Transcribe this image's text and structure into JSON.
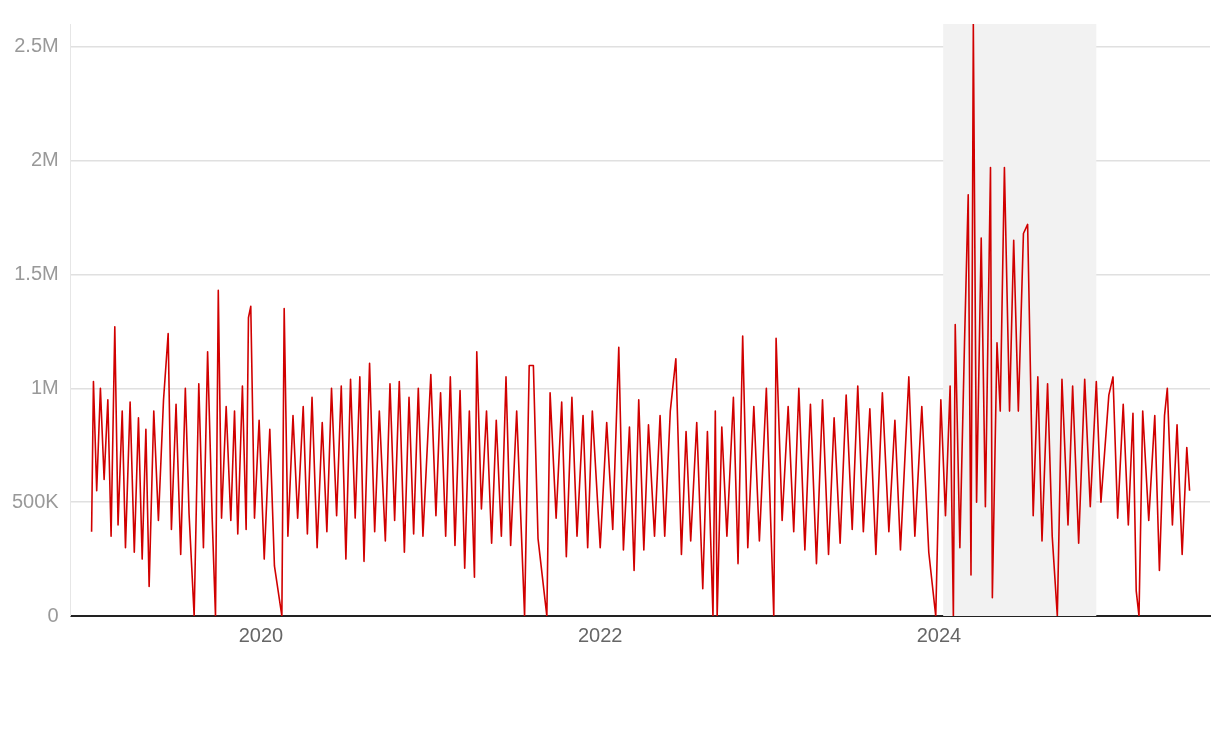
{
  "chart_data": {
    "type": "line",
    "x": [
      "2019-01-01",
      "2019-01-05",
      "2019-01-12",
      "2019-01-20",
      "2019-01-28",
      "2019-02-05",
      "2019-02-12",
      "2019-02-20",
      "2019-02-27",
      "2019-03-08",
      "2019-03-15",
      "2019-03-25",
      "2019-04-03",
      "2019-04-12",
      "2019-04-20",
      "2019-04-28",
      "2019-05-05",
      "2019-05-15",
      "2019-05-25",
      "2019-06-05",
      "2019-06-15",
      "2019-06-22",
      "2019-07-02",
      "2019-07-12",
      "2019-07-22",
      "2019-07-30",
      "2019-08-10",
      "2019-08-20",
      "2019-08-30",
      "2019-09-08",
      "2019-09-18",
      "2019-09-25",
      "2019-10-01",
      "2019-10-08",
      "2019-10-18",
      "2019-10-28",
      "2019-11-05",
      "2019-11-12",
      "2019-11-22",
      "2019-11-30",
      "2019-12-05",
      "2019-12-10",
      "2019-12-18",
      "2019-12-28",
      "2020-01-08",
      "2020-01-20",
      "2020-01-30",
      "2020-02-15",
      "2020-02-20",
      "2020-02-28",
      "2020-03-10",
      "2020-03-20",
      "2020-04-01",
      "2020-04-10",
      "2020-04-20",
      "2020-05-01",
      "2020-05-12",
      "2020-05-22",
      "2020-06-01",
      "2020-06-12",
      "2020-06-22",
      "2020-07-02",
      "2020-07-12",
      "2020-07-22",
      "2020-08-01",
      "2020-08-10",
      "2020-08-22",
      "2020-09-02",
      "2020-09-12",
      "2020-09-25",
      "2020-10-05",
      "2020-10-15",
      "2020-10-25",
      "2020-11-05",
      "2020-11-15",
      "2020-11-25",
      "2020-12-05",
      "2020-12-15",
      "2021-01-01",
      "2021-01-12",
      "2021-01-22",
      "2021-02-02",
      "2021-02-12",
      "2021-02-22",
      "2021-03-05",
      "2021-03-15",
      "2021-03-25",
      "2021-04-05",
      "2021-04-10",
      "2021-04-20",
      "2021-05-01",
      "2021-05-12",
      "2021-05-22",
      "2021-06-02",
      "2021-06-12",
      "2021-06-22",
      "2021-07-05",
      "2021-07-22",
      "2021-08-01",
      "2021-08-10",
      "2021-08-20",
      "2021-09-08",
      "2021-09-15",
      "2021-09-28",
      "2021-10-10",
      "2021-10-20",
      "2021-11-01",
      "2021-11-12",
      "2021-11-25",
      "2021-12-05",
      "2021-12-15",
      "2022-01-01",
      "2022-01-15",
      "2022-01-28",
      "2022-02-10",
      "2022-02-20",
      "2022-03-05",
      "2022-03-15",
      "2022-03-25",
      "2022-04-05",
      "2022-04-15",
      "2022-04-28",
      "2022-05-10",
      "2022-05-20",
      "2022-06-01",
      "2022-06-13",
      "2022-06-25",
      "2022-07-05",
      "2022-07-15",
      "2022-07-28",
      "2022-08-10",
      "2022-08-20",
      "2022-09-01",
      "2022-09-06",
      "2022-09-10",
      "2022-09-20",
      "2022-10-01",
      "2022-10-15",
      "2022-10-25",
      "2022-11-04",
      "2022-11-15",
      "2022-11-28",
      "2022-12-10",
      "2022-12-25",
      "2023-01-10",
      "2023-01-15",
      "2023-01-28",
      "2023-02-10",
      "2023-02-22",
      "2023-03-05",
      "2023-03-18",
      "2023-03-30",
      "2023-04-12",
      "2023-04-25",
      "2023-05-08",
      "2023-05-20",
      "2023-06-02",
      "2023-06-15",
      "2023-06-28",
      "2023-07-10",
      "2023-07-22",
      "2023-08-05",
      "2023-08-18",
      "2023-09-01",
      "2023-09-15",
      "2023-09-28",
      "2023-10-10",
      "2023-10-28",
      "2023-11-10",
      "2023-11-25",
      "2023-12-10",
      "2023-12-25",
      "2024-01-05",
      "2024-01-15",
      "2024-01-25",
      "2024-02-01",
      "2024-02-05",
      "2024-02-15",
      "2024-02-25",
      "2024-03-04",
      "2024-03-10",
      "2024-03-15",
      "2024-03-22",
      "2024-04-01",
      "2024-04-10",
      "2024-04-21",
      "2024-04-25",
      "2024-05-05",
      "2024-05-12",
      "2024-05-21",
      "2024-06-01",
      "2024-06-10",
      "2024-06-20",
      "2024-07-01",
      "2024-07-10",
      "2024-07-22",
      "2024-08-01",
      "2024-08-10",
      "2024-08-22",
      "2024-09-01",
      "2024-09-12",
      "2024-09-22",
      "2024-10-05",
      "2024-10-15",
      "2024-10-28",
      "2024-11-10",
      "2024-11-22",
      "2024-12-05",
      "2024-12-15",
      "2025-01-01",
      "2025-01-10",
      "2025-01-20",
      "2025-02-01",
      "2025-02-12",
      "2025-02-22",
      "2025-03-01",
      "2025-03-07",
      "2025-03-15",
      "2025-03-28",
      "2025-04-10",
      "2025-04-20",
      "2025-05-01",
      "2025-05-07",
      "2025-05-18",
      "2025-05-28",
      "2025-06-08",
      "2025-06-18",
      "2025-06-24"
    ],
    "series": [
      {
        "color": "#d10000",
        "values": [
          370000,
          1030000,
          550000,
          1000000,
          600000,
          950000,
          350000,
          1270000,
          400000,
          900000,
          300000,
          940000,
          280000,
          870000,
          250000,
          820000,
          130000,
          900000,
          420000,
          950000,
          1240000,
          380000,
          930000,
          270000,
          1000000,
          450000,
          0,
          1020000,
          300000,
          1160000,
          420000,
          0,
          1430000,
          430000,
          920000,
          420000,
          900000,
          360000,
          1010000,
          380000,
          1310000,
          1360000,
          430000,
          860000,
          250000,
          820000,
          220000,
          0,
          1350000,
          350000,
          880000,
          430000,
          920000,
          360000,
          960000,
          300000,
          850000,
          370000,
          1000000,
          440000,
          1010000,
          250000,
          1040000,
          430000,
          1050000,
          240000,
          1110000,
          370000,
          900000,
          330000,
          1020000,
          420000,
          1030000,
          280000,
          960000,
          360000,
          1000000,
          350000,
          1060000,
          440000,
          980000,
          350000,
          1050000,
          310000,
          990000,
          210000,
          900000,
          170000,
          1160000,
          470000,
          900000,
          320000,
          860000,
          350000,
          1050000,
          310000,
          900000,
          0,
          1100000,
          1100000,
          340000,
          0,
          980000,
          430000,
          940000,
          260000,
          960000,
          350000,
          880000,
          300000,
          900000,
          300000,
          850000,
          380000,
          1180000,
          290000,
          830000,
          200000,
          950000,
          290000,
          840000,
          350000,
          880000,
          350000,
          900000,
          1130000,
          270000,
          810000,
          330000,
          850000,
          120000,
          810000,
          0,
          900000,
          0,
          830000,
          350000,
          960000,
          230000,
          1230000,
          300000,
          920000,
          330000,
          1000000,
          0,
          1220000,
          420000,
          920000,
          370000,
          1000000,
          290000,
          930000,
          230000,
          950000,
          270000,
          870000,
          320000,
          970000,
          380000,
          1010000,
          370000,
          910000,
          270000,
          980000,
          370000,
          860000,
          290000,
          1050000,
          350000,
          920000,
          280000,
          0,
          950000,
          440000,
          1010000,
          0,
          1280000,
          300000,
          1200000,
          1850000,
          180000,
          2600000,
          500000,
          1660000,
          480000,
          1970000,
          80000,
          1200000,
          900000,
          1970000,
          900000,
          1650000,
          900000,
          1680000,
          1720000,
          440000,
          1050000,
          330000,
          1020000,
          350000,
          0,
          1040000,
          400000,
          1010000,
          320000,
          1040000,
          480000,
          1030000,
          500000,
          970000,
          1050000,
          430000,
          930000,
          400000,
          890000,
          110000,
          0,
          900000,
          420000,
          880000,
          200000,
          880000,
          1000000,
          400000,
          840000,
          270000,
          740000,
          550000
        ]
      }
    ],
    "xlim": [
      "2018-11-17",
      "2025-08-07"
    ],
    "xticks": [
      "2020",
      "2022",
      "2024"
    ],
    "yticks": [
      0,
      {
        "value": 500000,
        "label": "500K"
      },
      {
        "value": 1000000,
        "label": "1M"
      },
      {
        "value": 1500000,
        "label": "1.5M"
      },
      {
        "value": 2000000,
        "label": "2M"
      },
      {
        "value": 2500000,
        "label": "2.5M"
      }
    ],
    "ylim": [
      0,
      2600000
    ],
    "grid": "y",
    "bands": [
      {
        "axis": "x",
        "from": "2024-01-10",
        "to": "2024-12-05",
        "color": "#f2f2f2"
      }
    ]
  }
}
